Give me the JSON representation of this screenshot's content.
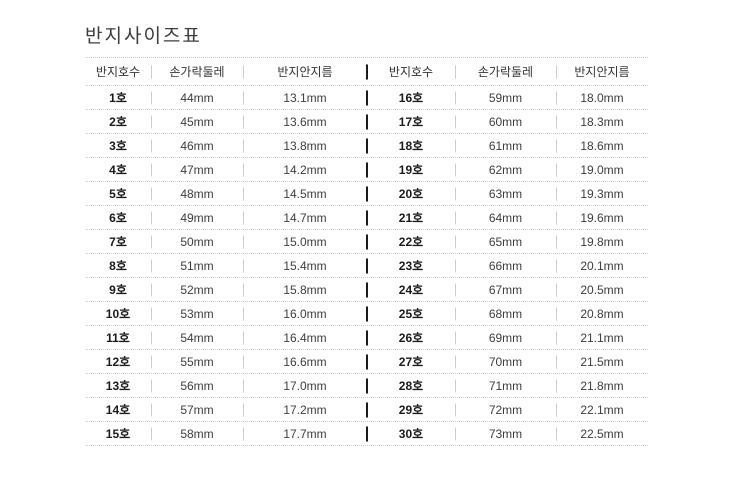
{
  "page": {
    "title": "반지사이즈표"
  },
  "colors": {
    "background": "#ffffff",
    "title_text": "#3c3c3c",
    "header_text": "#333333",
    "size_text": "#1a1a1a",
    "value_text": "#3d3d3d",
    "dotted_line": "#cccccc",
    "light_divider": "#cccccc",
    "dark_divider": "#1a1a1a"
  },
  "table": {
    "headers": [
      "반지호수",
      "손가락둘레",
      "반지안지름"
    ],
    "left_rows": [
      {
        "size": "1호",
        "circumference": "44mm",
        "diameter": "13.1mm"
      },
      {
        "size": "2호",
        "circumference": "45mm",
        "diameter": "13.6mm"
      },
      {
        "size": "3호",
        "circumference": "46mm",
        "diameter": "13.8mm"
      },
      {
        "size": "4호",
        "circumference": "47mm",
        "diameter": "14.2mm"
      },
      {
        "size": "5호",
        "circumference": "48mm",
        "diameter": "14.5mm"
      },
      {
        "size": "6호",
        "circumference": "49mm",
        "diameter": "14.7mm"
      },
      {
        "size": "7호",
        "circumference": "50mm",
        "diameter": "15.0mm"
      },
      {
        "size": "8호",
        "circumference": "51mm",
        "diameter": "15.4mm"
      },
      {
        "size": "9호",
        "circumference": "52mm",
        "diameter": "15.8mm"
      },
      {
        "size": "10호",
        "circumference": "53mm",
        "diameter": "16.0mm"
      },
      {
        "size": "11호",
        "circumference": "54mm",
        "diameter": "16.4mm"
      },
      {
        "size": "12호",
        "circumference": "55mm",
        "diameter": "16.6mm"
      },
      {
        "size": "13호",
        "circumference": "56mm",
        "diameter": "17.0mm"
      },
      {
        "size": "14호",
        "circumference": "57mm",
        "diameter": "17.2mm"
      },
      {
        "size": "15호",
        "circumference": "58mm",
        "diameter": "17.7mm"
      }
    ],
    "right_rows": [
      {
        "size": "16호",
        "circumference": "59mm",
        "diameter": "18.0mm"
      },
      {
        "size": "17호",
        "circumference": "60mm",
        "diameter": "18.3mm"
      },
      {
        "size": "18호",
        "circumference": "61mm",
        "diameter": "18.6mm"
      },
      {
        "size": "19호",
        "circumference": "62mm",
        "diameter": "19.0mm"
      },
      {
        "size": "20호",
        "circumference": "63mm",
        "diameter": "19.3mm"
      },
      {
        "size": "21호",
        "circumference": "64mm",
        "diameter": "19.6mm"
      },
      {
        "size": "22호",
        "circumference": "65mm",
        "diameter": "19.8mm"
      },
      {
        "size": "23호",
        "circumference": "66mm",
        "diameter": "20.1mm"
      },
      {
        "size": "24호",
        "circumference": "67mm",
        "diameter": "20.5mm"
      },
      {
        "size": "25호",
        "circumference": "68mm",
        "diameter": "20.8mm"
      },
      {
        "size": "26호",
        "circumference": "69mm",
        "diameter": "21.1mm"
      },
      {
        "size": "27호",
        "circumference": "70mm",
        "diameter": "21.5mm"
      },
      {
        "size": "28호",
        "circumference": "71mm",
        "diameter": "21.8mm"
      },
      {
        "size": "29호",
        "circumference": "72mm",
        "diameter": "22.1mm"
      },
      {
        "size": "30호",
        "circumference": "73mm",
        "diameter": "22.5mm"
      }
    ]
  },
  "chart_data": {
    "type": "table",
    "title": "반지사이즈표",
    "columns": [
      "반지호수",
      "손가락둘레",
      "반지안지름"
    ],
    "units": "mm",
    "rows": [
      [
        1,
        44,
        13.1
      ],
      [
        2,
        45,
        13.6
      ],
      [
        3,
        46,
        13.8
      ],
      [
        4,
        47,
        14.2
      ],
      [
        5,
        48,
        14.5
      ],
      [
        6,
        49,
        14.7
      ],
      [
        7,
        50,
        15.0
      ],
      [
        8,
        51,
        15.4
      ],
      [
        9,
        52,
        15.8
      ],
      [
        10,
        53,
        16.0
      ],
      [
        11,
        54,
        16.4
      ],
      [
        12,
        55,
        16.6
      ],
      [
        13,
        56,
        17.0
      ],
      [
        14,
        57,
        17.2
      ],
      [
        15,
        58,
        17.7
      ],
      [
        16,
        59,
        18.0
      ],
      [
        17,
        60,
        18.3
      ],
      [
        18,
        61,
        18.6
      ],
      [
        19,
        62,
        19.0
      ],
      [
        20,
        63,
        19.3
      ],
      [
        21,
        64,
        19.6
      ],
      [
        22,
        65,
        19.8
      ],
      [
        23,
        66,
        20.1
      ],
      [
        24,
        67,
        20.5
      ],
      [
        25,
        68,
        20.8
      ],
      [
        26,
        69,
        21.1
      ],
      [
        27,
        70,
        21.5
      ],
      [
        28,
        71,
        21.8
      ],
      [
        29,
        72,
        22.1
      ],
      [
        30,
        73,
        22.5
      ]
    ],
    "layout": {
      "split": "two side-by-side halves (rows 1-15 left, rows 16-30 right)",
      "row_separators": "dotted light gray horizontal lines",
      "half_separator": "short dark vertical bar per row"
    }
  }
}
